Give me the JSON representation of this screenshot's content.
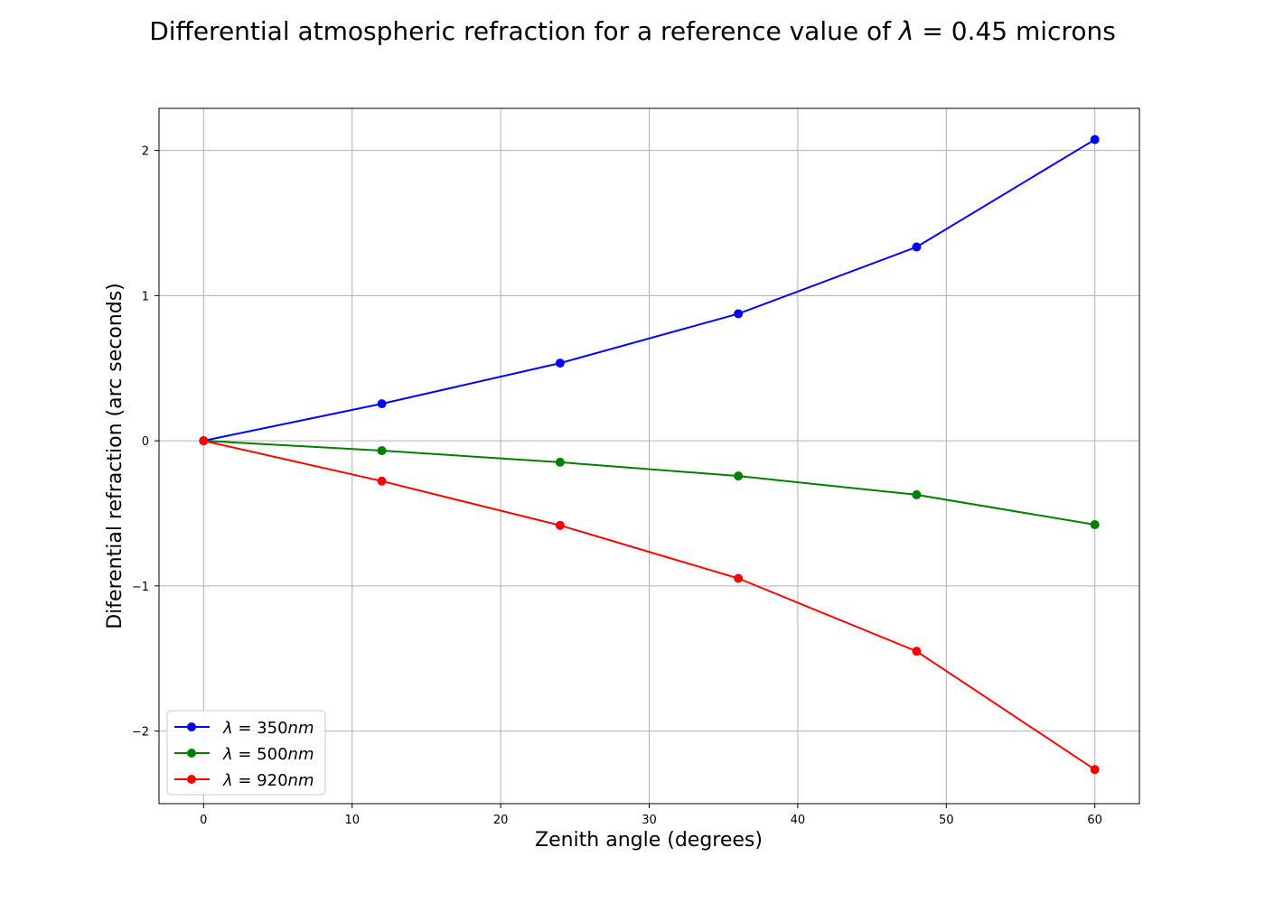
{
  "chart_data": {
    "type": "line",
    "title": {
      "prefix": "Differential atmospheric refraction for a reference value of ",
      "symbol": "λ",
      "suffix": " = 0.45 microns"
    },
    "xlabel": "Zenith angle (degrees)",
    "ylabel": "Diferential refraction (arc seconds)",
    "xlim": [
      -3,
      63
    ],
    "ylim": [
      -2.5,
      2.29
    ],
    "xticks": [
      0,
      10,
      20,
      30,
      40,
      50,
      60
    ],
    "yticks": [
      -2,
      -1,
      0,
      1,
      2
    ],
    "ytick_labels": [
      "−2",
      "−1",
      "0",
      "1",
      "2"
    ],
    "grid": true,
    "legend_position": "lower-left",
    "x": [
      0,
      12,
      24,
      36,
      48,
      60
    ],
    "series": [
      {
        "name": "λ = 350nm",
        "legend_symbol": "λ",
        "legend_eq": " = 350",
        "legend_unit": "nm",
        "color": "#0000ff",
        "values": [
          0,
          0.255,
          0.535,
          0.875,
          1.335,
          2.075
        ]
      },
      {
        "name": "λ = 500nm",
        "legend_symbol": "λ",
        "legend_eq": " = 500",
        "legend_unit": "nm",
        "color": "#008000",
        "values": [
          0,
          -0.068,
          -0.148,
          -0.243,
          -0.372,
          -0.578
        ]
      },
      {
        "name": "λ = 920nm",
        "legend_symbol": "λ",
        "legend_eq": " = 920",
        "legend_unit": "nm",
        "color": "#ff0000",
        "values": [
          0,
          -0.278,
          -0.583,
          -0.948,
          -1.45,
          -2.265
        ]
      }
    ]
  }
}
